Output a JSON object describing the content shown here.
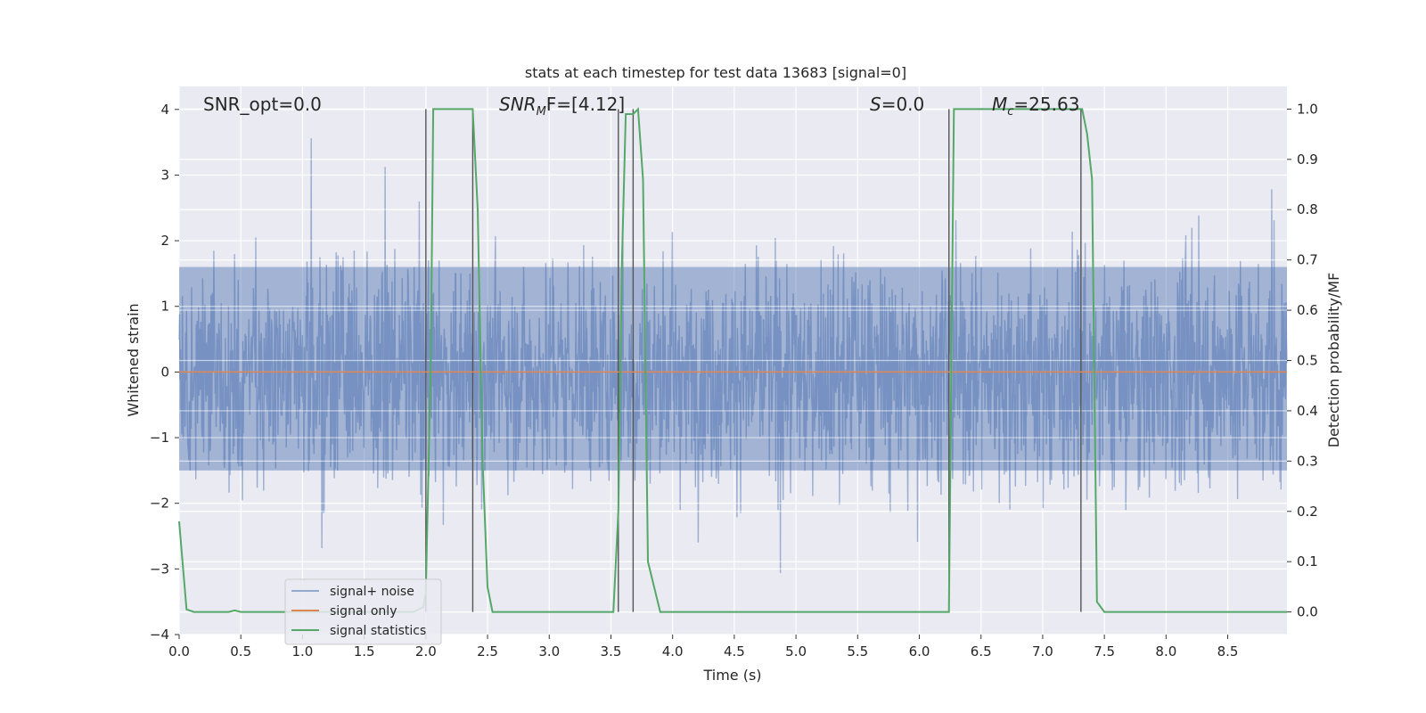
{
  "chart_data": {
    "type": "line",
    "title": "stats at each timestep for test data 13683 [signal=0]",
    "xlabel": "Time (s)",
    "ylabel": "Whitened strain",
    "y2label": "Detection probability/MF",
    "xlim": [
      0.0,
      8.98
    ],
    "ylim": [
      -4.0,
      4.35
    ],
    "y2lim": [
      -0.045,
      1.045
    ],
    "x_ticks": [
      "0.0",
      "0.5",
      "1.0",
      "1.5",
      "2.0",
      "2.5",
      "3.0",
      "3.5",
      "4.0",
      "4.5",
      "5.0",
      "5.5",
      "6.0",
      "6.5",
      "7.0",
      "7.5",
      "8.0",
      "8.5"
    ],
    "y_ticks": [
      "−4",
      "−3",
      "−2",
      "−1",
      "0",
      "1",
      "2",
      "3",
      "4"
    ],
    "y2_ticks": [
      "0.0",
      "0.1",
      "0.2",
      "0.3",
      "0.4",
      "0.5",
      "0.6",
      "0.7",
      "0.8",
      "0.9",
      "1.0"
    ],
    "grid": true,
    "legend_position": "lower-left",
    "annotations": {
      "snr_opt": "SNR_opt=0.0",
      "snr_mf": "SNR",
      "snr_mf_sub": "M",
      "snr_mf_tail": "F=[4.12]",
      "s_label": "S",
      "s_tail": "=0.0",
      "mc_label": "M",
      "mc_sub": "c",
      "mc_tail": "=25.63"
    },
    "series": [
      {
        "name": "signal+ noise",
        "color": "#4c72b0",
        "description_values": "whitened noise samples, roughly within -3.6 to 4.0",
        "envelope": {
          "min": -3.6,
          "max": 4.0,
          "core_min": -1.5,
          "core_max": 1.6
        }
      },
      {
        "name": "signal only",
        "color": "#dd8452",
        "x": [
          0.0,
          8.98
        ],
        "y": [
          0.0,
          0.0
        ]
      },
      {
        "name": "signal statistics",
        "color": "#55a868",
        "axis": "right",
        "x": [
          0.0,
          0.06,
          0.12,
          0.3,
          0.4,
          0.45,
          0.5,
          0.6,
          1.9,
          1.98,
          2.0,
          2.04,
          2.06,
          2.1,
          2.38,
          2.42,
          2.46,
          2.5,
          2.54,
          3.52,
          3.56,
          3.59,
          3.62,
          3.68,
          3.72,
          3.76,
          3.8,
          3.9,
          6.2,
          6.24,
          6.26,
          6.28,
          6.32,
          7.3,
          7.32,
          7.36,
          7.4,
          7.44,
          7.5,
          8.98
        ],
        "y": [
          0.18,
          0.005,
          0.0,
          0.0,
          0.0,
          0.003,
          0.0,
          0.0,
          0.0,
          0.01,
          0.04,
          0.5,
          1.0,
          1.0,
          1.0,
          0.8,
          0.3,
          0.05,
          0.0,
          0.0,
          0.2,
          0.7,
          0.99,
          0.99,
          1.0,
          0.86,
          0.1,
          0.0,
          0.0,
          0.0,
          0.5,
          1.0,
          1.0,
          1.0,
          1.0,
          0.95,
          0.86,
          0.02,
          0.0,
          0.0
        ]
      }
    ],
    "markers_x": [
      2.0,
      2.38,
      3.56,
      3.68,
      6.24,
      7.31
    ]
  }
}
